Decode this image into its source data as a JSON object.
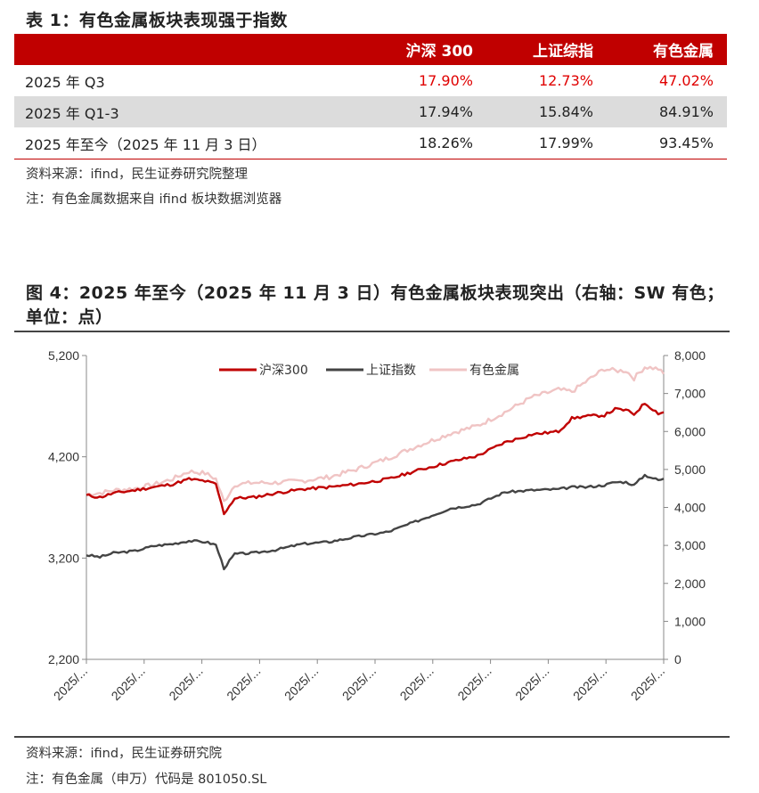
{
  "table": {
    "title": "表 1：有色金属板块表现强于指数",
    "headers": [
      "",
      "沪深 300",
      "上证综指",
      "有色金属"
    ],
    "rows": [
      {
        "label": "2025 年 Q3",
        "values": [
          "17.90%",
          "12.73%",
          "47.02%"
        ]
      },
      {
        "label": "2025 年 Q1-3",
        "values": [
          "17.94%",
          "15.84%",
          "84.91%"
        ]
      },
      {
        "label": "2025 年至今（2025 年 11 月 3 日）",
        "values": [
          "18.26%",
          "17.99%",
          "93.45%"
        ]
      }
    ],
    "source": "资料来源：ifind，民生证券研究院整理",
    "note": "注：有色金属数据来自 ifind 板块数据浏览器"
  },
  "figure": {
    "title": "图 4：2025 年至今（2025 年 11 月 3 日）有色金属板块表现突出（右轴：SW 有色；单位：点）",
    "source": "资料来源：ifind，民生证券研究院",
    "note": "注：有色金属（申万）代码是 801050.SL"
  },
  "colors": {
    "hs300": "#c00000",
    "sh": "#444444",
    "nf": "#f0c4c4",
    "accent": "#c00000"
  },
  "chart_data": {
    "type": "line",
    "legend": [
      "沪深300",
      "上证指数",
      "有色金属"
    ],
    "left_axis": {
      "ylim": [
        2200,
        5200
      ],
      "ticks": [
        "2,200",
        "3,200",
        "4,200",
        "5,200"
      ]
    },
    "right_axis": {
      "ylim": [
        0,
        8000
      ],
      "ticks": [
        "0",
        "1,000",
        "2,000",
        "3,000",
        "4,000",
        "5,000",
        "6,000",
        "7,000",
        "8,000"
      ]
    },
    "x_tick_labels": [
      "2025/...",
      "2025/...",
      "2025/...",
      "2025/...",
      "2025/...",
      "2025/...",
      "2025/...",
      "2025/...",
      "2025/...",
      "2025/...",
      "2025/..."
    ],
    "series": [
      {
        "name": "沪深300",
        "axis": "left",
        "anchors": [
          [
            0,
            3820
          ],
          [
            5,
            3800
          ],
          [
            10,
            3840
          ],
          [
            18,
            3870
          ],
          [
            25,
            3900
          ],
          [
            32,
            3930
          ],
          [
            38,
            3980
          ],
          [
            44,
            3960
          ],
          [
            48,
            3930
          ],
          [
            51,
            3640
          ],
          [
            55,
            3790
          ],
          [
            62,
            3800
          ],
          [
            70,
            3840
          ],
          [
            80,
            3880
          ],
          [
            90,
            3900
          ],
          [
            100,
            3930
          ],
          [
            112,
            3980
          ],
          [
            122,
            4060
          ],
          [
            135,
            4150
          ],
          [
            145,
            4210
          ],
          [
            155,
            4340
          ],
          [
            165,
            4420
          ],
          [
            175,
            4450
          ],
          [
            180,
            4580
          ],
          [
            185,
            4600
          ],
          [
            192,
            4610
          ],
          [
            196,
            4670
          ],
          [
            200,
            4660
          ],
          [
            203,
            4620
          ],
          [
            207,
            4730
          ],
          [
            212,
            4630
          ],
          [
            214,
            4640
          ]
        ]
      },
      {
        "name": "上证指数",
        "axis": "left",
        "anchors": [
          [
            0,
            3230
          ],
          [
            5,
            3210
          ],
          [
            10,
            3250
          ],
          [
            18,
            3270
          ],
          [
            25,
            3320
          ],
          [
            32,
            3340
          ],
          [
            38,
            3370
          ],
          [
            44,
            3360
          ],
          [
            48,
            3330
          ],
          [
            51,
            3100
          ],
          [
            55,
            3240
          ],
          [
            62,
            3250
          ],
          [
            70,
            3280
          ],
          [
            80,
            3340
          ],
          [
            90,
            3360
          ],
          [
            100,
            3410
          ],
          [
            112,
            3460
          ],
          [
            122,
            3560
          ],
          [
            135,
            3690
          ],
          [
            145,
            3730
          ],
          [
            155,
            3850
          ],
          [
            165,
            3870
          ],
          [
            175,
            3880
          ],
          [
            180,
            3900
          ],
          [
            185,
            3900
          ],
          [
            192,
            3920
          ],
          [
            196,
            3950
          ],
          [
            200,
            3950
          ],
          [
            203,
            3920
          ],
          [
            207,
            4020
          ],
          [
            212,
            3970
          ],
          [
            214,
            3980
          ]
        ]
      },
      {
        "name": "有色金属",
        "axis": "right",
        "anchors": [
          [
            0,
            4350
          ],
          [
            5,
            4380
          ],
          [
            10,
            4450
          ],
          [
            18,
            4500
          ],
          [
            25,
            4600
          ],
          [
            32,
            4750
          ],
          [
            38,
            4950
          ],
          [
            44,
            4900
          ],
          [
            48,
            4750
          ],
          [
            51,
            4150
          ],
          [
            55,
            4600
          ],
          [
            62,
            4650
          ],
          [
            70,
            4650
          ],
          [
            80,
            4700
          ],
          [
            90,
            4800
          ],
          [
            100,
            5000
          ],
          [
            112,
            5300
          ],
          [
            122,
            5600
          ],
          [
            135,
            5950
          ],
          [
            145,
            6150
          ],
          [
            155,
            6500
          ],
          [
            165,
            6900
          ],
          [
            175,
            7100
          ],
          [
            180,
            7050
          ],
          [
            185,
            7300
          ],
          [
            192,
            7650
          ],
          [
            196,
            7600
          ],
          [
            200,
            7600
          ],
          [
            203,
            7400
          ],
          [
            207,
            7700
          ],
          [
            212,
            7650
          ],
          [
            214,
            7500
          ]
        ]
      }
    ]
  }
}
